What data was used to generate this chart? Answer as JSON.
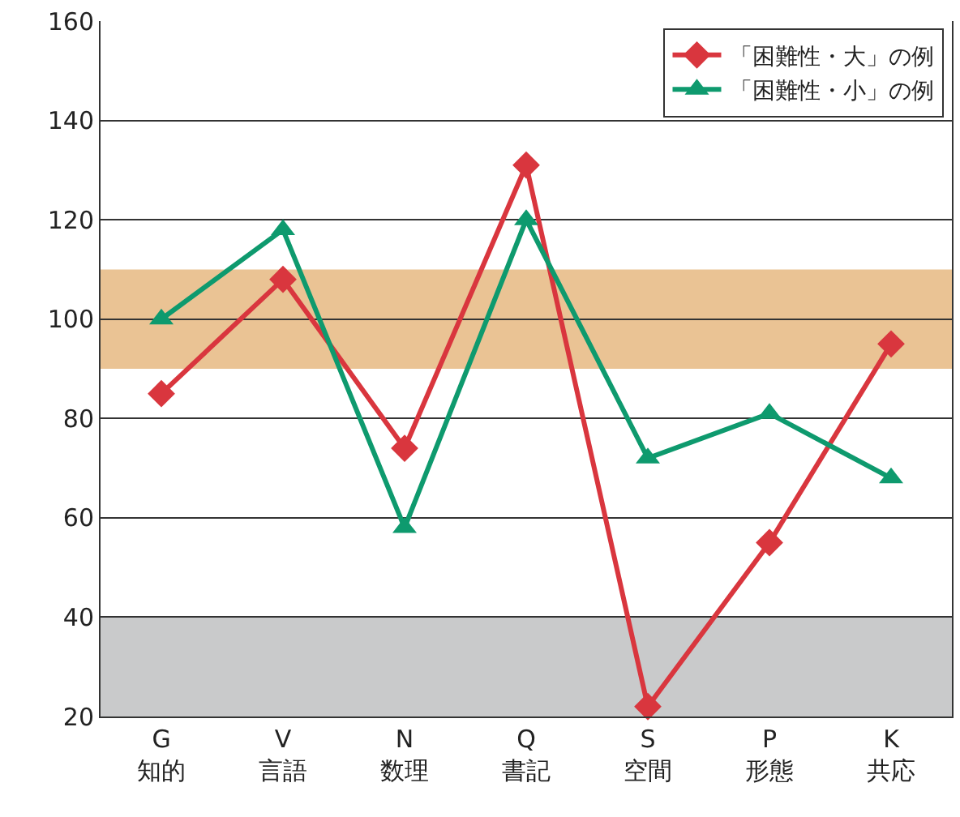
{
  "chart_data": {
    "type": "line",
    "categories": [
      "G\n知的",
      "V\n言語",
      "N\n数理",
      "Q\n書記",
      "S\n空間",
      "P\n形態",
      "K\n共応"
    ],
    "series": [
      {
        "name": "「困難性・大」の例",
        "color": "#d9363e",
        "marker": "diamond",
        "values": [
          85,
          108,
          74,
          131,
          22,
          55,
          95
        ]
      },
      {
        "name": "「困難性・小」の例",
        "color": "#0e9a6e",
        "marker": "triangle",
        "values": [
          100,
          118,
          58,
          120,
          72,
          81,
          68
        ]
      }
    ],
    "ylim": [
      20,
      160
    ],
    "yticks": [
      20,
      40,
      60,
      80,
      100,
      120,
      140,
      160
    ],
    "bands": [
      {
        "axis": "y",
        "from": 90,
        "to": 110,
        "color": "#eac394"
      },
      {
        "axis": "y",
        "from": 20,
        "to": 40,
        "color": "#c9cacb"
      }
    ],
    "grid": "y",
    "legend": "top right",
    "line_style": "solid"
  }
}
